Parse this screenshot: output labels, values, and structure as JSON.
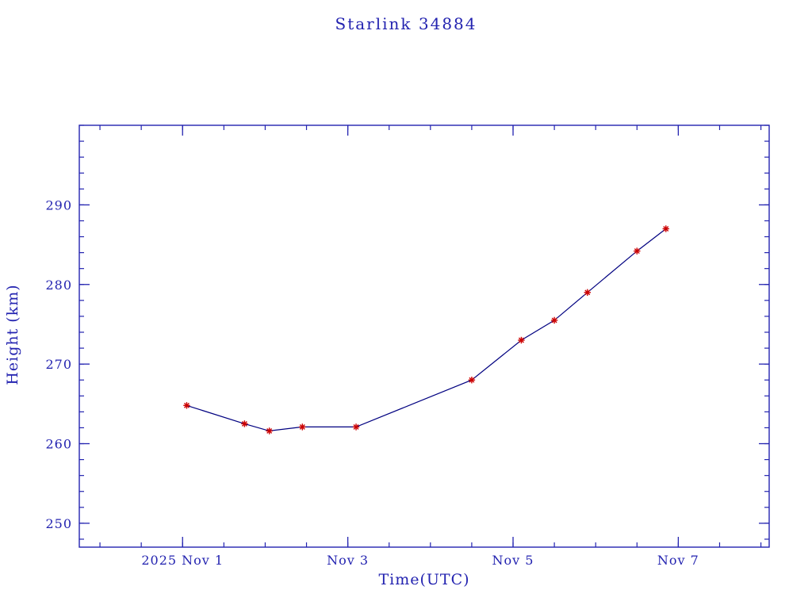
{
  "title": "Starlink 34884",
  "colors": {
    "background": "#ffffff",
    "text": "#2323b0",
    "axis": "#2323b0",
    "line": "#000080",
    "marker": "#cc0000"
  },
  "chart_data": {
    "type": "line",
    "title": "Starlink 34884",
    "xlabel": "Time(UTC)",
    "ylabel": "Height (km)",
    "x_unit": "day of month, 2025 Nov (UTC)",
    "xlim": [
      -0.25,
      8.1
    ],
    "ylim": [
      247,
      300
    ],
    "grid": false,
    "legend": "none",
    "x_major_ticks": [
      {
        "value": 1,
        "label": "2025 Nov 1"
      },
      {
        "value": 3,
        "label": "Nov 3"
      },
      {
        "value": 5,
        "label": "Nov 5"
      },
      {
        "value": 7,
        "label": "Nov 7"
      }
    ],
    "x_minor_step": 0.5,
    "y_major_ticks": [
      {
        "value": 250,
        "label": "250"
      },
      {
        "value": 260,
        "label": "260"
      },
      {
        "value": 270,
        "label": "270"
      },
      {
        "value": 280,
        "label": "280"
      },
      {
        "value": 290,
        "label": "290"
      }
    ],
    "y_minor_step": 2,
    "points": [
      {
        "x": 1.05,
        "y": 264.8
      },
      {
        "x": 1.75,
        "y": 262.5
      },
      {
        "x": 2.05,
        "y": 261.6
      },
      {
        "x": 2.45,
        "y": 262.1
      },
      {
        "x": 3.1,
        "y": 262.1
      },
      {
        "x": 4.5,
        "y": 268.0
      },
      {
        "x": 5.1,
        "y": 273.0
      },
      {
        "x": 5.5,
        "y": 275.5
      },
      {
        "x": 5.9,
        "y": 279.0
      },
      {
        "x": 6.5,
        "y": 284.2
      },
      {
        "x": 6.85,
        "y": 287.0
      }
    ]
  }
}
